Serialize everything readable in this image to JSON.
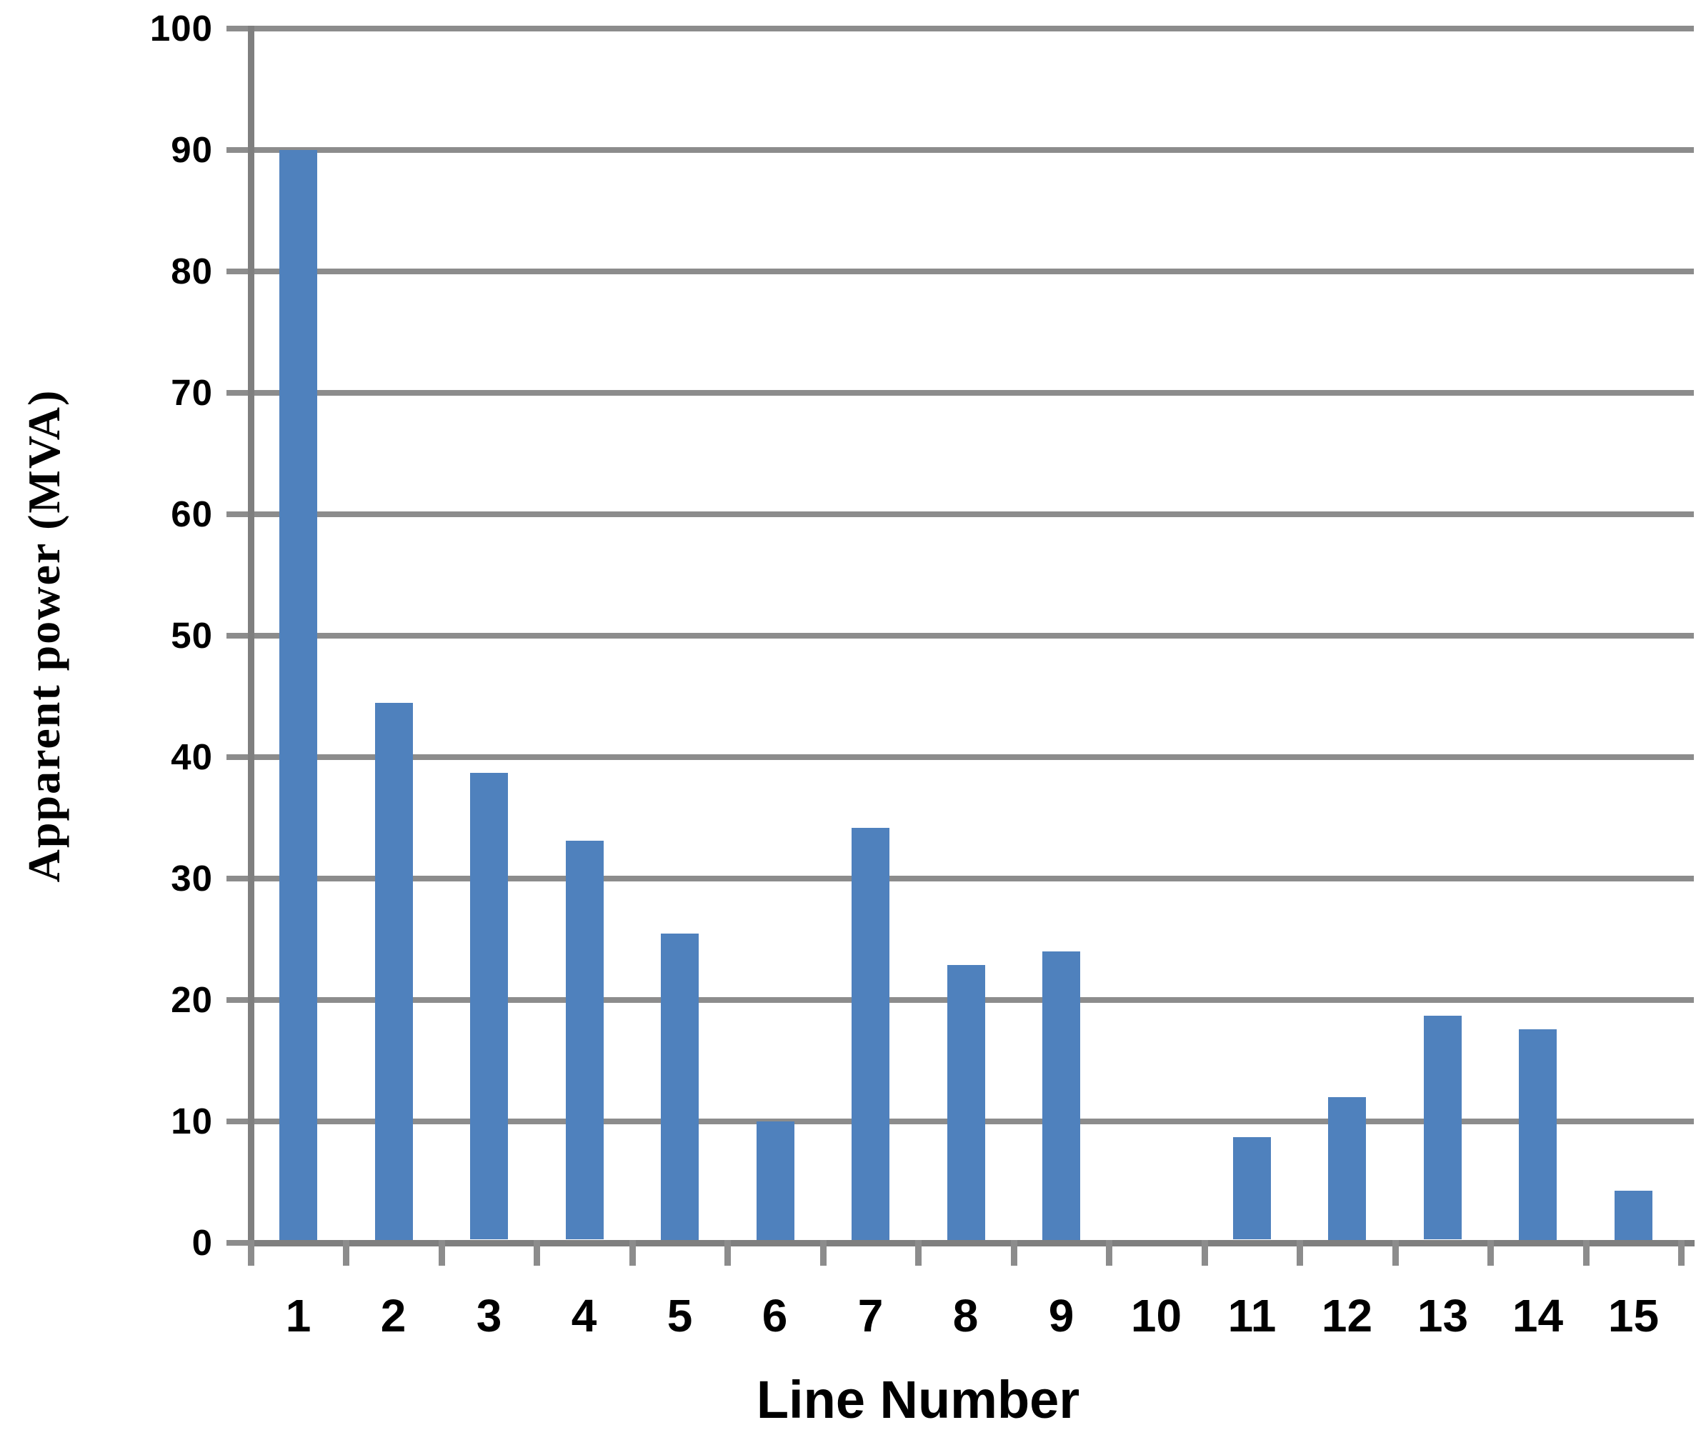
{
  "chart_data": {
    "type": "bar",
    "title": "",
    "xlabel": "Line Number",
    "ylabel": "Apparent power (MVA)",
    "categories": [
      "1",
      "2",
      "3",
      "4",
      "5",
      "6",
      "7",
      "8",
      "9",
      "10",
      "11",
      "12",
      "13",
      "14",
      "15"
    ],
    "series": [
      {
        "name": "Apparent power",
        "values": [
          90,
          44.5,
          38.7,
          33.1,
          25.5,
          10,
          34.2,
          22.9,
          24,
          0,
          8.7,
          12,
          18.7,
          17.6,
          4.3
        ]
      }
    ],
    "ylim": [
      0,
      100
    ],
    "yticks": [
      0,
      10,
      20,
      30,
      40,
      50,
      60,
      70,
      80,
      90,
      100
    ],
    "grid": "horizontal-major",
    "legend_position": "none",
    "colors": {
      "bar_fill": "#4F81BD",
      "gridline": "#8C8C8C",
      "axis_line": "#7F7F7F",
      "tick": "#8C8C8C",
      "text": "#000000",
      "background": "#FFFFFF"
    }
  }
}
